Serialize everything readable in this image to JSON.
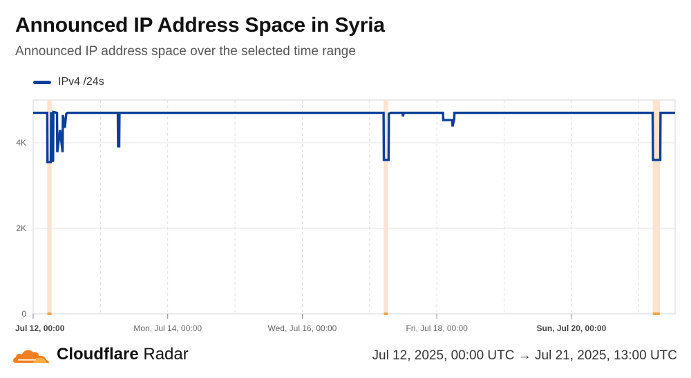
{
  "header": {
    "title": "Announced IP Address Space in Syria",
    "subtitle": "Announced IP address space over the selected time range"
  },
  "legend": {
    "label": "IPv4 /24s",
    "color": "#0b3f99"
  },
  "footer": {
    "brand_bold": "Cloudflare",
    "brand_regular": " Radar",
    "time_range": "Jul 12, 2025, 00:00 UTC → Jul 21, 2025, 13:00 UTC"
  },
  "colors": {
    "line": "#0b3f99",
    "highlight": "#fde3cf",
    "highlight_marker": "#f6a04d",
    "logo": "#f38020"
  },
  "chart_data": {
    "type": "line",
    "x_unit": "hours since Jul 12, 2025 00:00 UTC",
    "xlim": [
      0,
      229
    ],
    "ylim": [
      0,
      5000
    ],
    "y_ticks": [
      {
        "value": 0,
        "label": "0"
      },
      {
        "value": 2000,
        "label": "2K"
      },
      {
        "value": 4000,
        "label": "4K"
      }
    ],
    "x_ticks": [
      {
        "value": 0,
        "label": "Jul 12, 00:00",
        "bold": true
      },
      {
        "value": 48,
        "label": "Mon, Jul 14, 00:00",
        "bold": false
      },
      {
        "value": 96,
        "label": "Wed, Jul 16, 00:00",
        "bold": false
      },
      {
        "value": 144,
        "label": "Fri, Jul 18, 00:00",
        "bold": false
      },
      {
        "value": 192,
        "label": "Sun, Jul 20, 00:00",
        "bold": true
      }
    ],
    "minor_gridlines": [
      24,
      72,
      120,
      168,
      216
    ],
    "highlight_ranges": [
      [
        5,
        6.6
      ],
      [
        125,
        126.6
      ],
      [
        221,
        223.6
      ]
    ],
    "series": [
      {
        "name": "IPv4 /24s",
        "points": [
          [
            0,
            4700
          ],
          [
            5,
            4700
          ],
          [
            5.1,
            3550
          ],
          [
            6.3,
            3550
          ],
          [
            6.4,
            4720
          ],
          [
            6.6,
            3580
          ],
          [
            7.1,
            3580
          ],
          [
            7.2,
            4720
          ],
          [
            8.5,
            4700
          ],
          [
            8.6,
            3780
          ],
          [
            9.6,
            4300
          ],
          [
            10.5,
            3780
          ],
          [
            10.6,
            4650
          ],
          [
            11.3,
            4350
          ],
          [
            11.8,
            4680
          ],
          [
            12.3,
            4700
          ],
          [
            30.2,
            4700
          ],
          [
            30.3,
            3920
          ],
          [
            30.7,
            3920
          ],
          [
            30.8,
            4700
          ],
          [
            125,
            4700
          ],
          [
            125.1,
            3600
          ],
          [
            126.8,
            3600
          ],
          [
            126.9,
            4680
          ],
          [
            127.5,
            4700
          ],
          [
            131.8,
            4700
          ],
          [
            131.9,
            4620
          ],
          [
            132.2,
            4700
          ],
          [
            146.2,
            4700
          ],
          [
            146.3,
            4530
          ],
          [
            149.5,
            4530
          ],
          [
            149.6,
            4380
          ],
          [
            150.2,
            4560
          ],
          [
            150.3,
            4700
          ],
          [
            221,
            4700
          ],
          [
            221.1,
            3600
          ],
          [
            223.7,
            3600
          ],
          [
            223.8,
            4700
          ],
          [
            229,
            4700
          ]
        ]
      }
    ]
  }
}
